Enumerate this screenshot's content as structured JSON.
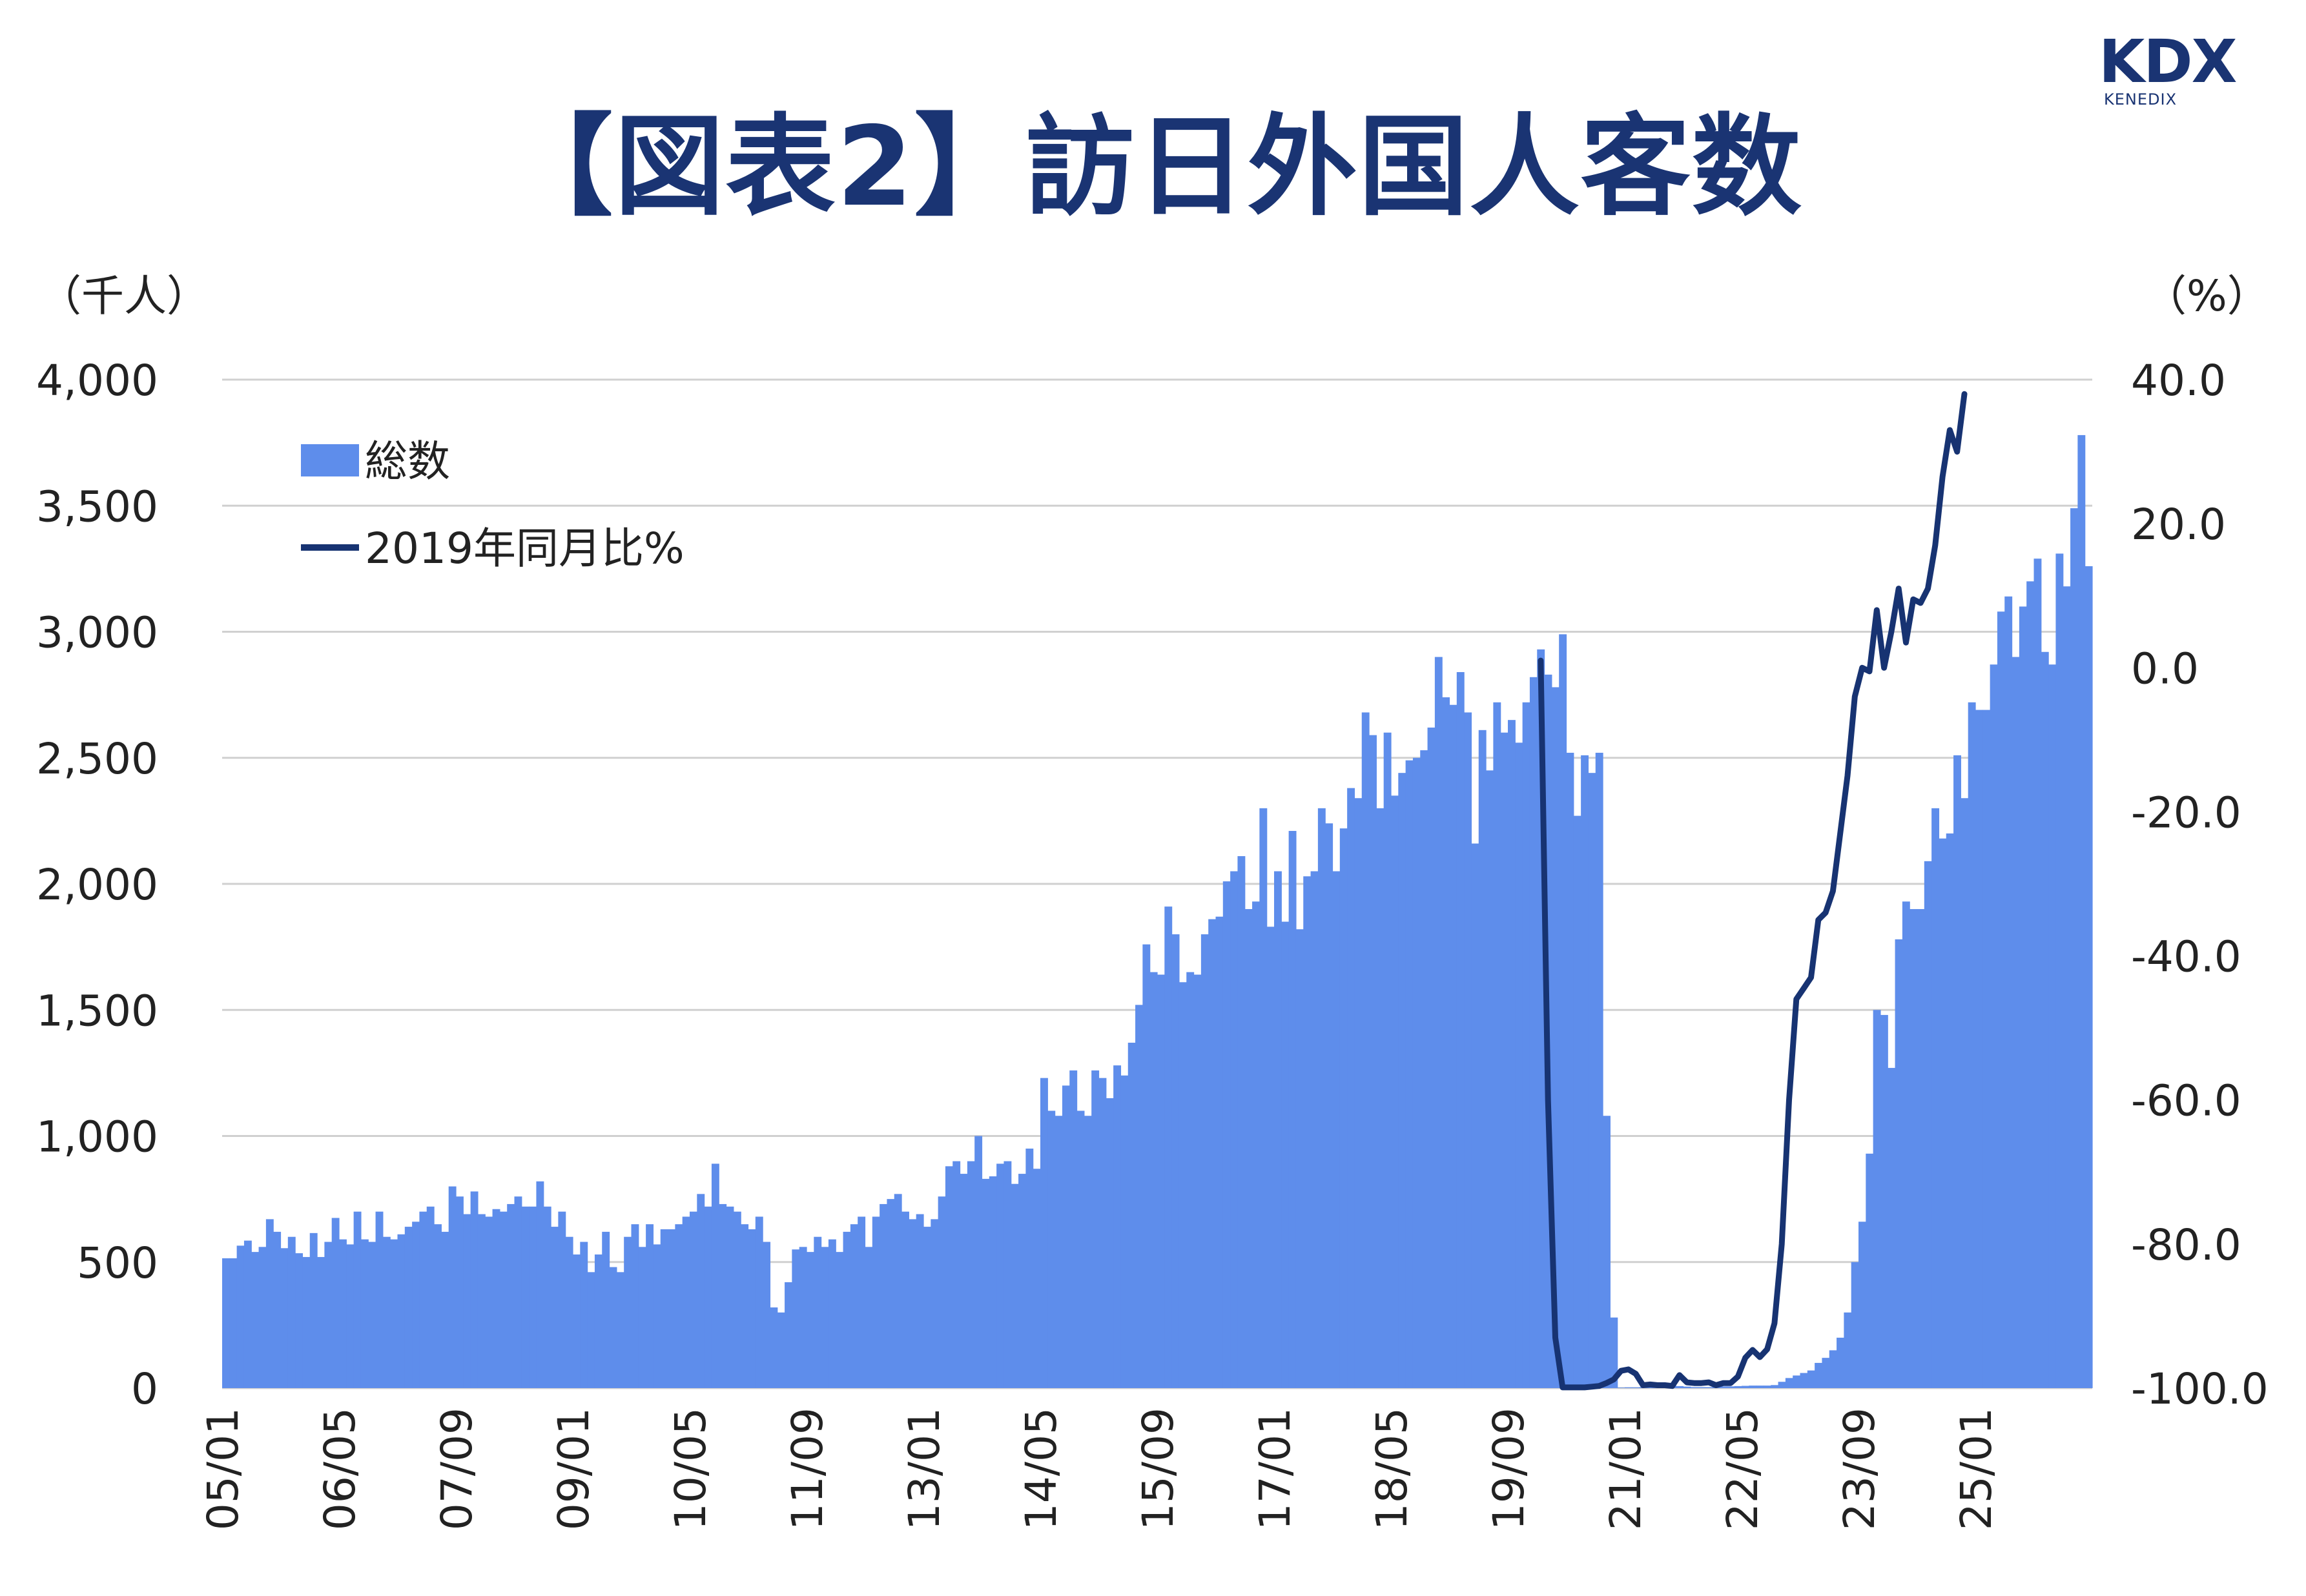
{
  "title": "【図表2】訪日外国人客数",
  "logo": {
    "main": "KDX",
    "sub": "KENEDIX"
  },
  "chart_data": {
    "type": "bar",
    "left_unit": "（千人）",
    "right_unit": "（%）",
    "left_axis": {
      "min": 0,
      "max": 4000,
      "step": 500,
      "labels": [
        "0",
        "500",
        "1,000",
        "1,500",
        "2,000",
        "2,500",
        "3,000",
        "3,500",
        "4,000"
      ]
    },
    "right_axis": {
      "min": -100,
      "max": 40,
      "step": 20,
      "labels": [
        "-100.0",
        "-80.0",
        "-60.0",
        "-40.0",
        "-20.0",
        "0.0",
        "20.0",
        "40.0"
      ]
    },
    "x_tick_labels": [
      "05/01",
      "06/05",
      "07/09",
      "09/01",
      "10/05",
      "11/09",
      "13/01",
      "14/05",
      "15/09",
      "17/01",
      "18/05",
      "19/09",
      "21/01",
      "22/05",
      "23/09",
      "25/01"
    ],
    "x_tick_indices": [
      0,
      16,
      32,
      48,
      64,
      80,
      96,
      112,
      128,
      144,
      160,
      176,
      192,
      208,
      224,
      240
    ],
    "grid": true,
    "legend_position": "top-left",
    "series": [
      {
        "name": "総数",
        "type": "bar",
        "axis": "left",
        "color": "#5e8deb",
        "start": "2005/01",
        "values": [
          515,
          515,
          565,
          585,
          540,
          560,
          670,
          620,
          555,
          600,
          535,
          520,
          615,
          520,
          580,
          675,
          590,
          570,
          700,
          590,
          580,
          700,
          600,
          590,
          610,
          640,
          660,
          700,
          720,
          650,
          620,
          800,
          760,
          690,
          780,
          690,
          680,
          710,
          700,
          730,
          760,
          720,
          720,
          820,
          720,
          640,
          700,
          600,
          530,
          580,
          460,
          530,
          620,
          480,
          460,
          600,
          650,
          560,
          650,
          570,
          630,
          630,
          650,
          680,
          700,
          770,
          720,
          890,
          730,
          720,
          700,
          650,
          630,
          680,
          580,
          320,
          300,
          420,
          550,
          560,
          540,
          600,
          560,
          590,
          540,
          620,
          650,
          680,
          560,
          680,
          730,
          750,
          770,
          700,
          670,
          690,
          640,
          670,
          760,
          880,
          900,
          850,
          900,
          1000,
          830,
          840,
          890,
          900,
          810,
          850,
          950,
          870,
          1230,
          1100,
          1080,
          1200,
          1260,
          1100,
          1080,
          1260,
          1230,
          1150,
          1280,
          1240,
          1370,
          1520,
          1760,
          1650,
          1640,
          1910,
          1800,
          1610,
          1650,
          1640,
          1800,
          1860,
          1870,
          2010,
          2050,
          2110,
          1900,
          1930,
          2300,
          1830,
          2050,
          1850,
          2210,
          1820,
          2030,
          2050,
          2300,
          2240,
          2050,
          2220,
          2380,
          2340,
          2680,
          2590,
          2300,
          2600,
          2350,
          2440,
          2490,
          2500,
          2530,
          2620,
          2900,
          2740,
          2710,
          2840,
          2680,
          2160,
          2610,
          2450,
          2720,
          2600,
          2650,
          2560,
          2720,
          2820,
          2930,
          2830,
          2780,
          2990,
          2520,
          2270,
          2510,
          2440,
          2520,
          1080,
          280,
          2,
          3,
          3,
          4,
          4,
          5,
          7,
          11,
          8,
          6,
          4,
          4,
          4,
          5,
          7,
          7,
          8,
          9,
          10,
          10,
          10,
          12,
          25,
          40,
          50,
          60,
          70,
          100,
          120,
          150,
          200,
          300,
          500,
          660,
          930,
          1500,
          1480,
          1270,
          1780,
          1930,
          1900,
          1900,
          2090,
          2300,
          2180,
          2200,
          2510,
          2340,
          2720,
          2690,
          2690,
          2870,
          3080,
          3140,
          2900,
          3100,
          3200,
          3290,
          2920,
          2870,
          3310,
          3180,
          3490,
          3780,
          3260
        ]
      },
      {
        "name": "2019年同月比%",
        "type": "line",
        "axis": "right",
        "color": "#173372",
        "start": "2020/01",
        "values": [
          1,
          -60,
          -93,
          -99.9,
          -99.9,
          -99.9,
          -99.9,
          -99.8,
          -99.7,
          -99.3,
          -98.8,
          -97.6,
          -97.4,
          -98,
          -99.6,
          -99.5,
          -99.6,
          -99.6,
          -99.7,
          -98.2,
          -99.2,
          -99.3,
          -99.3,
          -99.2,
          -99.6,
          -99.3,
          -99.3,
          -98.4,
          -95.8,
          -94.7,
          -95.7,
          -94.6,
          -91,
          -80,
          -60,
          -46,
          -44.5,
          -43,
          -35,
          -34,
          -31,
          -23,
          -15,
          -4,
          0,
          -0.5,
          8,
          0,
          5,
          11,
          3.5,
          9.5,
          9,
          11,
          17,
          26.5,
          33,
          30,
          38
        ]
      }
    ]
  }
}
